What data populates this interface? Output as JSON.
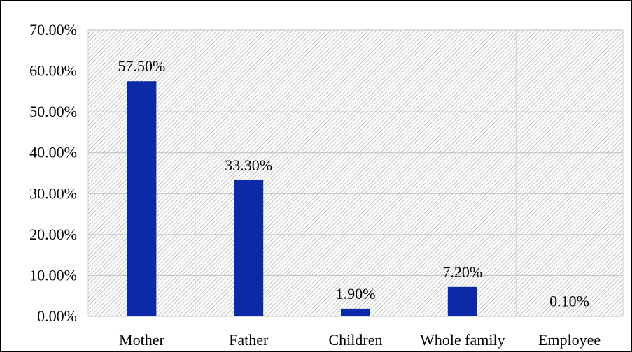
{
  "chart_data": {
    "type": "bar",
    "title": "",
    "xlabel": "",
    "ylabel": "",
    "categories": [
      "Mother",
      "Father",
      "Children",
      "Whole family",
      "Employee"
    ],
    "values": [
      57.5,
      33.3,
      1.9,
      7.2,
      0.1
    ],
    "data_labels": [
      "57.50%",
      "33.30%",
      "1.90%",
      "7.20%",
      "0.10%"
    ],
    "ylim": [
      0,
      70
    ],
    "yticks": [
      0,
      10,
      20,
      30,
      40,
      50,
      60,
      70
    ],
    "ytick_labels": [
      "0.00%",
      "10.00%",
      "20.00%",
      "30.00%",
      "40.00%",
      "50.00%",
      "60.00%",
      "70.00%"
    ],
    "grid": true,
    "legend": "none",
    "bar_color": "#0a2aa8",
    "plot_background": "hatched light gray"
  }
}
